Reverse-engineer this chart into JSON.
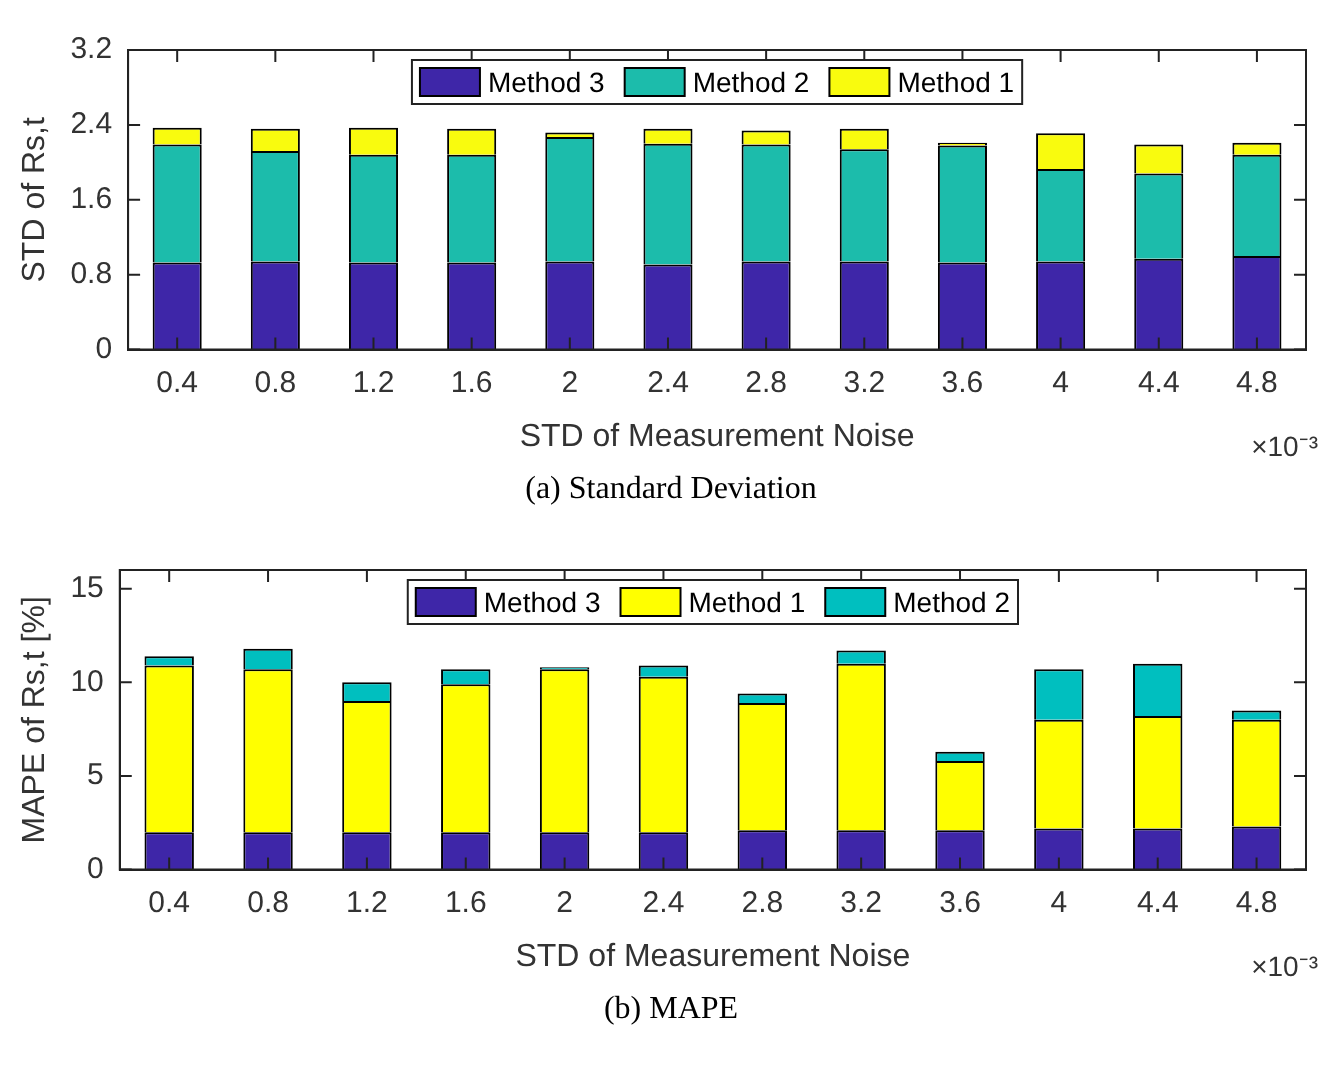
{
  "chart_data": [
    {
      "type": "bar",
      "stacked": true,
      "xlabel": "STD of Measurement Noise",
      "ylabel": "STD of Rs,t",
      "categories": [
        "0.4",
        "0.8",
        "1.2",
        "1.6",
        "2",
        "2.4",
        "2.8",
        "3.2",
        "3.6",
        "4",
        "4.4",
        "4.8"
      ],
      "series": [
        {
          "name": "Method 3",
          "color": "#3e26a8",
          "values": [
            0.93,
            0.94,
            0.93,
            0.93,
            0.94,
            0.91,
            0.94,
            0.94,
            0.93,
            0.94,
            0.97,
            1.0
          ]
        },
        {
          "name": "Method 2",
          "color": "#1cbcab",
          "values": [
            1.26,
            1.18,
            1.15,
            1.15,
            1.33,
            1.29,
            1.25,
            1.2,
            1.25,
            0.99,
            0.91,
            1.08
          ]
        },
        {
          "name": "Method 1",
          "color": "#f9fb0e",
          "values": [
            0.18,
            0.24,
            0.29,
            0.28,
            0.05,
            0.16,
            0.15,
            0.22,
            0.03,
            0.38,
            0.31,
            0.13
          ]
        }
      ],
      "ylim": [
        0,
        3.2
      ],
      "yticks": [
        0,
        0.8,
        1.6,
        2.4,
        3.2
      ],
      "grid": false,
      "legend": "top",
      "annotations": [
        "×10⁻³",
        "(a) Standard Deviation"
      ]
    },
    {
      "type": "bar",
      "stacked": true,
      "xlabel": "STD of Measurement Noise",
      "ylabel": "MAPE of Rs,t [%]",
      "categories": [
        "0.4",
        "0.8",
        "1.2",
        "1.6",
        "2",
        "2.4",
        "2.8",
        "3.2",
        "3.6",
        "4",
        "4.4",
        "4.8"
      ],
      "series": [
        {
          "name": "Method 3",
          "color": "#3e26a8",
          "values": [
            2.0,
            2.0,
            2.0,
            2.0,
            2.0,
            2.0,
            2.1,
            2.1,
            2.1,
            2.2,
            2.2,
            2.3
          ]
        },
        {
          "name": "Method 1",
          "color": "#ffff00",
          "values": [
            8.9,
            8.7,
            7.0,
            7.9,
            8.7,
            8.3,
            6.8,
            8.9,
            3.7,
            5.8,
            6.0,
            5.7
          ]
        },
        {
          "name": "Method 2",
          "color": "#00bfbf",
          "values": [
            0.5,
            1.1,
            1.0,
            0.8,
            0.1,
            0.6,
            0.5,
            0.7,
            0.5,
            2.7,
            2.8,
            0.5
          ]
        }
      ],
      "ylim": [
        0,
        16
      ],
      "yticks": [
        0,
        5,
        10,
        15
      ],
      "grid": false,
      "legend": "top",
      "annotations": [
        "×10⁻³",
        "(b) MAPE"
      ]
    }
  ]
}
